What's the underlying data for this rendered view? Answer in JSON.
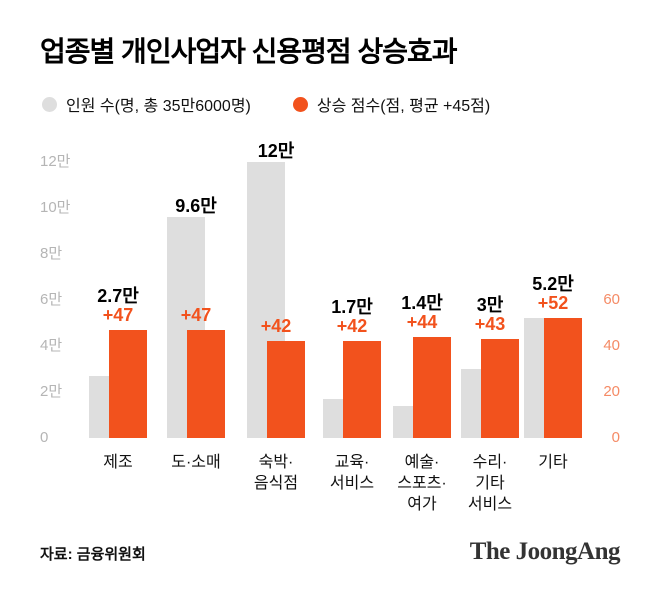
{
  "title": "업종별 개인사업자 신용평점 상승효과",
  "legend": [
    {
      "label": "인원 수(명, 총 35만6000명)",
      "color": "#dedede"
    },
    {
      "label": "상승 점수(점, 평균 +45점)",
      "color": "#f2521d"
    }
  ],
  "source": "자료: 금융위원회",
  "logo": "The JoongAng",
  "chart_data": {
    "type": "bar",
    "title": "업종별 개인사업자 신용평점 상승효과",
    "categories": [
      "제조",
      "도·소매",
      "숙박·음식점",
      "교육·서비스",
      "예술·스포츠·여가",
      "수리·기타 서비스",
      "기타"
    ],
    "category_lines": [
      [
        "제조"
      ],
      [
        "도·소매"
      ],
      [
        "숙박·",
        "음식점"
      ],
      [
        "교육·",
        "서비스"
      ],
      [
        "예술·",
        "스포츠·",
        "여가"
      ],
      [
        "수리·",
        "기타",
        "서비스"
      ],
      [
        "기타"
      ]
    ],
    "series": [
      {
        "name": "인원 수",
        "unit": "만명",
        "axis": "left",
        "values": [
          2.7,
          9.6,
          12,
          1.7,
          1.4,
          3,
          5.2
        ],
        "labels": [
          "2.7만",
          "9.6만",
          "12만",
          "1.7만",
          "1.4만",
          "3만",
          "5.2만"
        ],
        "color": "#dedede"
      },
      {
        "name": "상승 점수",
        "unit": "점",
        "axis": "right",
        "values": [
          47,
          47,
          42,
          42,
          44,
          43,
          52
        ],
        "labels": [
          "+47",
          "+47",
          "+42",
          "+42",
          "+44",
          "+43",
          "+52"
        ],
        "color": "#f2521d"
      }
    ],
    "left_axis": {
      "ticks": [
        0,
        2,
        4,
        6,
        8,
        10,
        12
      ],
      "tick_labels": [
        "0",
        "2만",
        "4만",
        "6만",
        "8만",
        "10만",
        "12만"
      ],
      "max": 12,
      "color": "#b5b5b5"
    },
    "right_axis": {
      "ticks": [
        0,
        20,
        40,
        60
      ],
      "tick_labels": [
        "0",
        "20",
        "40",
        "60"
      ],
      "max": 60,
      "color": "#f58b66"
    },
    "grid": false,
    "legend_position": "top"
  }
}
